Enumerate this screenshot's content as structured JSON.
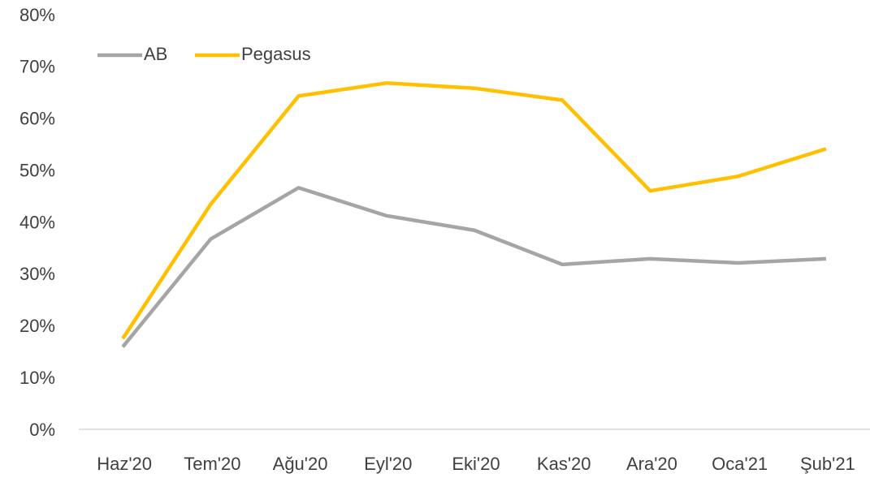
{
  "chart_data": {
    "type": "line",
    "categories": [
      "Haz'20",
      "Tem'20",
      "Ağu'20",
      "Eyl'20",
      "Eki'20",
      "Kas'20",
      "Ara'20",
      "Oca'21",
      "Şub'21"
    ],
    "series": [
      {
        "name": "AB",
        "color": "#a5a5a5",
        "values": [
          15.9,
          36.7,
          46.6,
          41.2,
          38.4,
          31.8,
          32.9,
          32.1,
          32.9
        ]
      },
      {
        "name": "Pegasus",
        "color": "#ffc000",
        "values": [
          17.5,
          43.4,
          64.3,
          66.8,
          65.8,
          63.5,
          46.0,
          48.8,
          54.1
        ]
      }
    ],
    "ylim": [
      0,
      80
    ],
    "yticks": [
      {
        "value": 0,
        "label": "0%"
      },
      {
        "value": 10,
        "label": "10%"
      },
      {
        "value": 20,
        "label": "20%"
      },
      {
        "value": 30,
        "label": "30%"
      },
      {
        "value": 40,
        "label": "40%"
      },
      {
        "value": 50,
        "label": "50%"
      },
      {
        "value": 60,
        "label": "60%"
      },
      {
        "value": 70,
        "label": "70%"
      },
      {
        "value": 80,
        "label": "80%"
      }
    ],
    "legend": "top-left",
    "grid": false
  }
}
